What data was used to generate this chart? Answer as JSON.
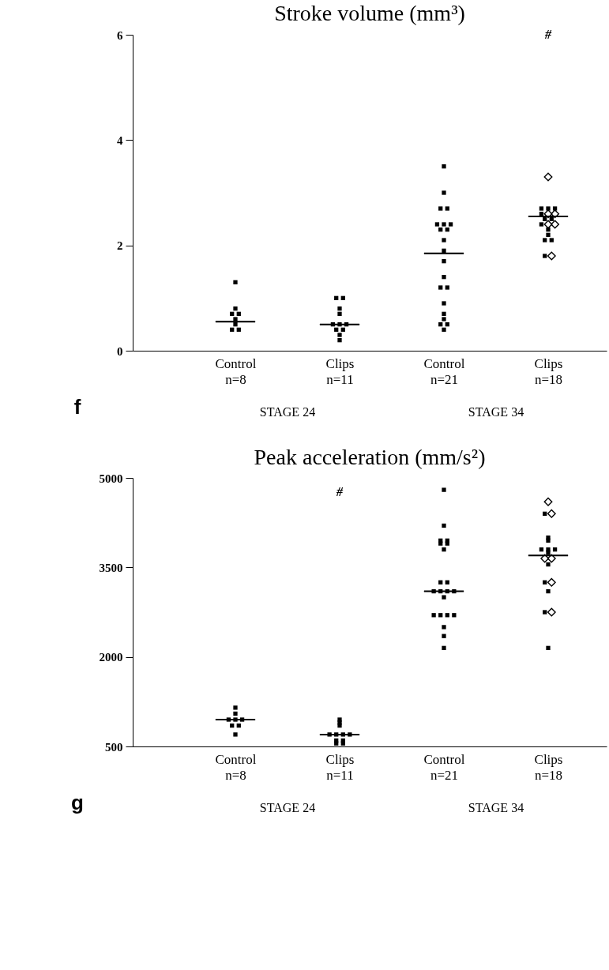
{
  "chart_data": [
    {
      "type": "scatter",
      "title": "Stroke volume (mm³)",
      "categories": [
        "Control\nn=8",
        "Clips\nn=11",
        "Control\nn=21",
        "Clips\nn=18"
      ],
      "ylim": [
        0,
        6
      ],
      "yticks": [
        0,
        2,
        4,
        6
      ],
      "annotations": [
        "f",
        "STAGE 24",
        "STAGE 34",
        "#"
      ],
      "series": [
        {
          "type": "scatter",
          "marker": "square",
          "color": "#000000",
          "x": [
            "Control\nn=8",
            "Control\nn=8",
            "Control\nn=8",
            "Control\nn=8",
            "Control\nn=8",
            "Control\nn=8",
            "Control\nn=8",
            "Control\nn=8",
            "Clips\nn=11",
            "Clips\nn=11",
            "Clips\nn=11",
            "Clips\nn=11",
            "Clips\nn=11",
            "Clips\nn=11",
            "Clips\nn=11",
            "Clips\nn=11",
            "Clips\nn=11",
            "Clips\nn=11",
            "Clips\nn=11",
            "Control\nn=21",
            "Control\nn=21",
            "Control\nn=21",
            "Control\nn=21",
            "Control\nn=21",
            "Control\nn=21",
            "Control\nn=21",
            "Control\nn=21",
            "Control\nn=21",
            "Control\nn=21",
            "Control\nn=21",
            "Control\nn=21",
            "Control\nn=21",
            "Control\nn=21",
            "Control\nn=21",
            "Control\nn=21",
            "Control\nn=21",
            "Control\nn=21",
            "Control\nn=21",
            "Control\nn=21",
            "Control\nn=21",
            "Clips\nn=18",
            "Clips\nn=18",
            "Clips\nn=18",
            "Clips\nn=18",
            "Clips\nn=18",
            "Clips\nn=18",
            "Clips\nn=18",
            "Clips\nn=18",
            "Clips\nn=18",
            "Clips\nn=18",
            "Clips\nn=18",
            "Clips\nn=18"
          ],
          "values": [
            1.3,
            0.8,
            0.7,
            0.7,
            0.6,
            0.5,
            0.4,
            0.4,
            1.0,
            1.0,
            0.8,
            0.7,
            0.5,
            0.5,
            0.5,
            0.4,
            0.4,
            0.3,
            0.2,
            3.5,
            3.0,
            2.7,
            2.7,
            2.4,
            2.4,
            2.4,
            2.3,
            2.3,
            2.1,
            1.9,
            1.7,
            1.4,
            1.2,
            1.2,
            0.9,
            0.7,
            0.6,
            0.5,
            0.5,
            0.4,
            2.7,
            2.7,
            2.7,
            2.6,
            2.5,
            2.5,
            2.4,
            2.3,
            2.2,
            2.1,
            2.1,
            1.8
          ]
        },
        {
          "type": "scatter",
          "marker": "diamond",
          "color": "#000000",
          "x": [
            "Clips\nn=18",
            "Clips\nn=18",
            "Clips\nn=18",
            "Clips\nn=18",
            "Clips\nn=18",
            "Clips\nn=18"
          ],
          "values": [
            3.3,
            2.6,
            2.6,
            2.4,
            2.4,
            1.8
          ]
        },
        {
          "type": "box",
          "color": "#000000",
          "boxes": [
            {
              "low": 0.55,
              "q1": 0.55,
              "median": 0.55,
              "q3": 0.55,
              "high": 0.55
            },
            {
              "low": 0.5,
              "q1": 0.5,
              "median": 0.5,
              "q3": 0.5,
              "high": 0.5
            },
            {
              "low": 1.85,
              "q1": 1.85,
              "median": 1.85,
              "q3": 1.85,
              "high": 1.85
            },
            {
              "low": 2.55,
              "q1": 2.55,
              "median": 2.55,
              "q3": 2.55,
              "high": 2.55
            }
          ]
        }
      ]
    },
    {
      "type": "scatter",
      "title": "Peak acceleration (mm/s²)",
      "categories": [
        "Control\nn=8",
        "Clips\nn=11",
        "Control\nn=21",
        "Clips\nn=18"
      ],
      "ylim": [
        500,
        5000
      ],
      "yticks": [
        500,
        2000,
        3500,
        5000
      ],
      "annotations": [
        "g",
        "STAGE 24",
        "STAGE 34",
        "#"
      ],
      "series": [
        {
          "type": "scatter",
          "marker": "square",
          "color": "#000000",
          "x": [
            "Control\nn=8",
            "Control\nn=8",
            "Control\nn=8",
            "Control\nn=8",
            "Control\nn=8",
            "Control\nn=8",
            "Control\nn=8",
            "Control\nn=8",
            "Clips\nn=11",
            "Clips\nn=11",
            "Clips\nn=11",
            "Clips\nn=11",
            "Clips\nn=11",
            "Clips\nn=11",
            "Clips\nn=11",
            "Clips\nn=11",
            "Clips\nn=11",
            "Clips\nn=11",
            "Clips\nn=11",
            "Control\nn=21",
            "Control\nn=21",
            "Control\nn=21",
            "Control\nn=21",
            "Control\nn=21",
            "Control\nn=21",
            "Control\nn=21",
            "Control\nn=21",
            "Control\nn=21",
            "Control\nn=21",
            "Control\nn=21",
            "Control\nn=21",
            "Control\nn=21",
            "Control\nn=21",
            "Control\nn=21",
            "Control\nn=21",
            "Control\nn=21",
            "Control\nn=21",
            "Control\nn=21",
            "Control\nn=21",
            "Control\nn=21",
            "Clips\nn=18",
            "Clips\nn=18",
            "Clips\nn=18",
            "Clips\nn=18",
            "Clips\nn=18",
            "Clips\nn=18",
            "Clips\nn=18",
            "Clips\nn=18",
            "Clips\nn=18",
            "Clips\nn=18",
            "Clips\nn=18",
            "Clips\nn=18"
          ],
          "values": [
            1150,
            1050,
            950,
            950,
            950,
            850,
            850,
            700,
            950,
            900,
            850,
            700,
            700,
            700,
            700,
            600,
            600,
            550,
            550,
            4800,
            4200,
            3950,
            3950,
            3900,
            3900,
            3800,
            3250,
            3250,
            3100,
            3100,
            3100,
            3100,
            3000,
            2700,
            2700,
            2700,
            2700,
            2500,
            2350,
            2150,
            4400,
            4000,
            3950,
            3800,
            3800,
            3800,
            3750,
            3550,
            3250,
            3100,
            2750,
            2150
          ]
        },
        {
          "type": "scatter",
          "marker": "diamond",
          "color": "#000000",
          "x": [
            "Clips\nn=18",
            "Clips\nn=18",
            "Clips\nn=18",
            "Clips\nn=18",
            "Clips\nn=18",
            "Clips\nn=18"
          ],
          "values": [
            4600,
            4400,
            3650,
            3650,
            3250,
            2750
          ]
        },
        {
          "type": "box",
          "color": "#000000",
          "boxes": [
            {
              "low": 950,
              "q1": 950,
              "median": 950,
              "q3": 950,
              "high": 950
            },
            {
              "low": 700,
              "q1": 700,
              "median": 700,
              "q3": 700,
              "high": 700
            },
            {
              "low": 3100,
              "q1": 3100,
              "median": 3100,
              "q3": 3100,
              "high": 3100
            },
            {
              "low": 3700,
              "q1": 3700,
              "median": 3700,
              "q3": 3700,
              "high": 3700
            }
          ]
        }
      ]
    }
  ]
}
